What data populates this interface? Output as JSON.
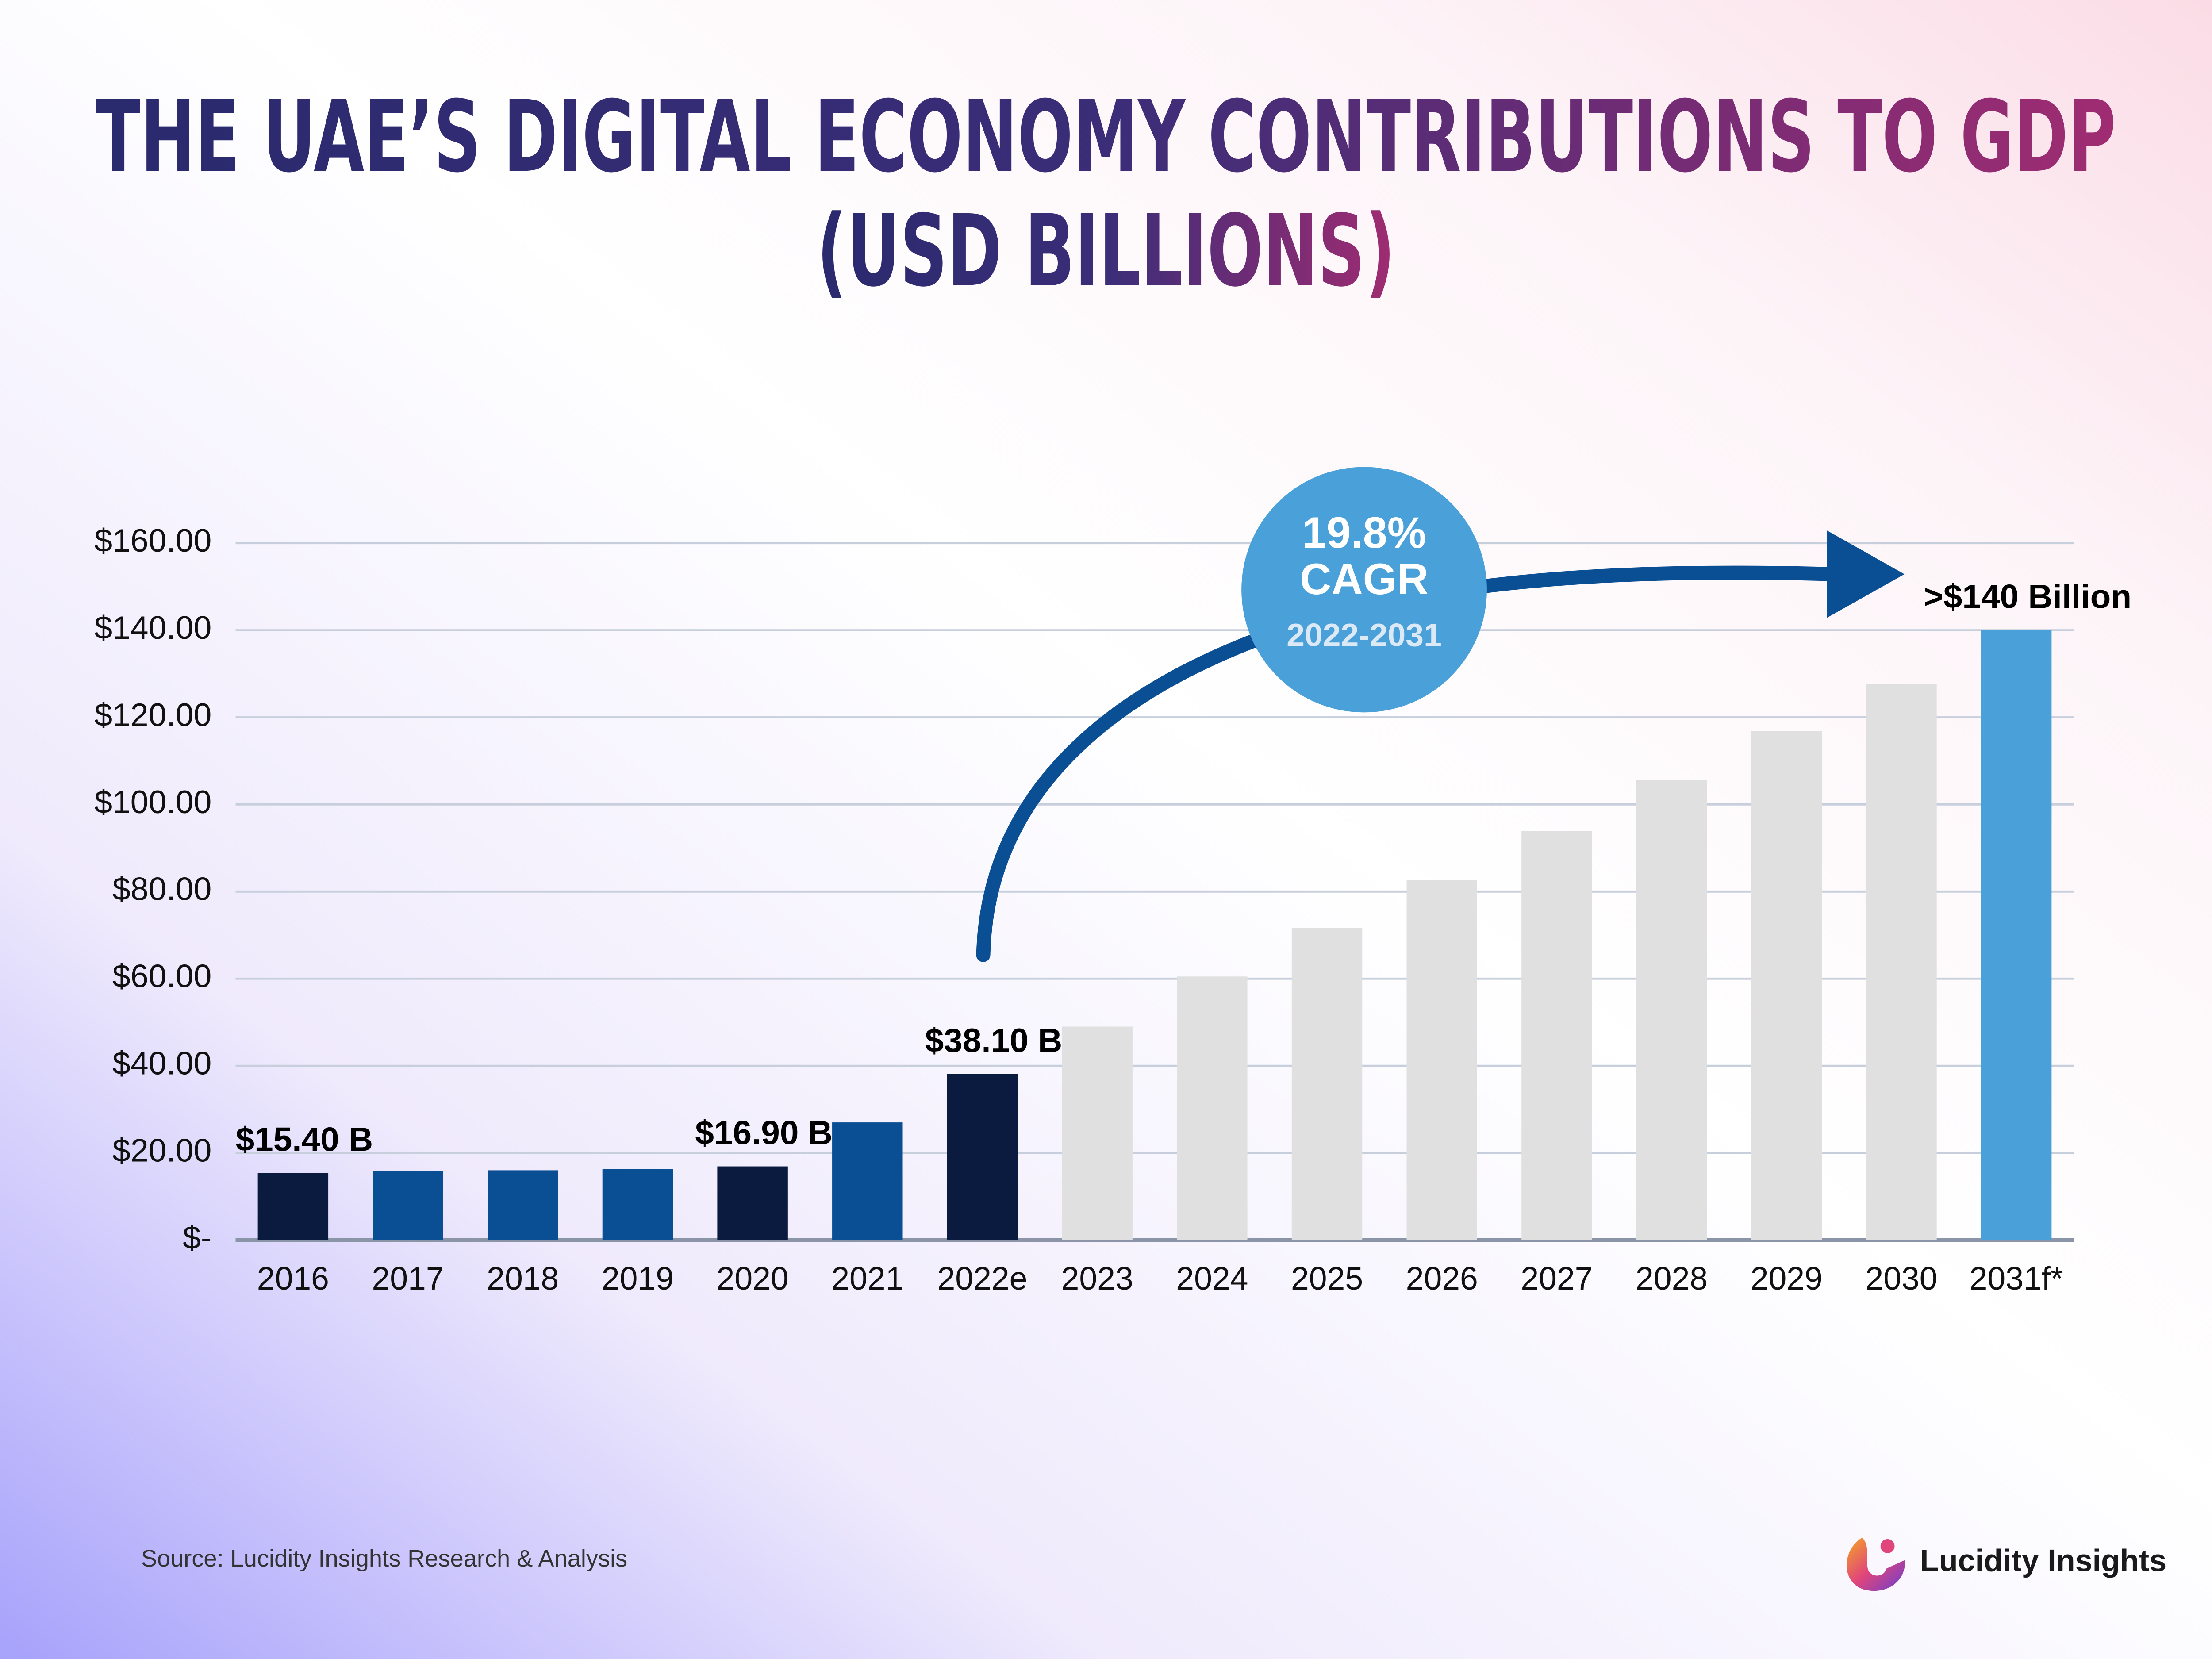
{
  "chart_data": {
    "type": "bar",
    "title": "THE UAE’S DIGITAL ECONOMY CONTRIBUTIONS TO GDP",
    "subtitle": "(USD BILLIONS)",
    "categories": [
      "2016",
      "2017",
      "2018",
      "2019",
      "2020",
      "2021",
      "2022e",
      "2023",
      "2024",
      "2025",
      "2026",
      "2027",
      "2028",
      "2029",
      "2030",
      "2031f*"
    ],
    "values": [
      15.4,
      15.8,
      16.0,
      16.3,
      16.9,
      27.0,
      38.1,
      49.0,
      60.5,
      71.6,
      82.6,
      93.9,
      105.6,
      116.9,
      127.6,
      140
    ],
    "value_labels": [
      "$15.40 B",
      null,
      null,
      null,
      "$16.90 B",
      null,
      "$38.10 B",
      null,
      null,
      null,
      null,
      null,
      null,
      null,
      null,
      ">$140 Billion"
    ],
    "colors": [
      "#0b1a3f",
      "#0a4e93",
      "#0a4e93",
      "#0a4e93",
      "#0b1a3f",
      "#0a4e93",
      "#0b1a3f",
      "#e0e0e0",
      "#e0e0e0",
      "#e0e0e0",
      "#e0e0e0",
      "#e0e0e0",
      "#e0e0e0",
      "#e0e0e0",
      "#e0e0e0",
      "#4aa0d8"
    ],
    "ylim": [
      0,
      160
    ],
    "yticks": [
      {
        "value": 0,
        "label": "$-"
      },
      {
        "value": 20,
        "label": "$20.00"
      },
      {
        "value": 40,
        "label": "$40.00"
      },
      {
        "value": 60,
        "label": "$60.00"
      },
      {
        "value": 80,
        "label": "$80.00"
      },
      {
        "value": 100,
        "label": "$100.00"
      },
      {
        "value": 120,
        "label": "$120.00"
      },
      {
        "value": 140,
        "label": "$140.00"
      },
      {
        "value": 160,
        "label": "$160.00"
      }
    ],
    "grid": true,
    "annotations": [
      "19.8%",
      "CAGR",
      "2022-2031"
    ],
    "source": "Source: Lucidity Insights Research & Analysis",
    "logo_text": "Lucidity Insights"
  }
}
